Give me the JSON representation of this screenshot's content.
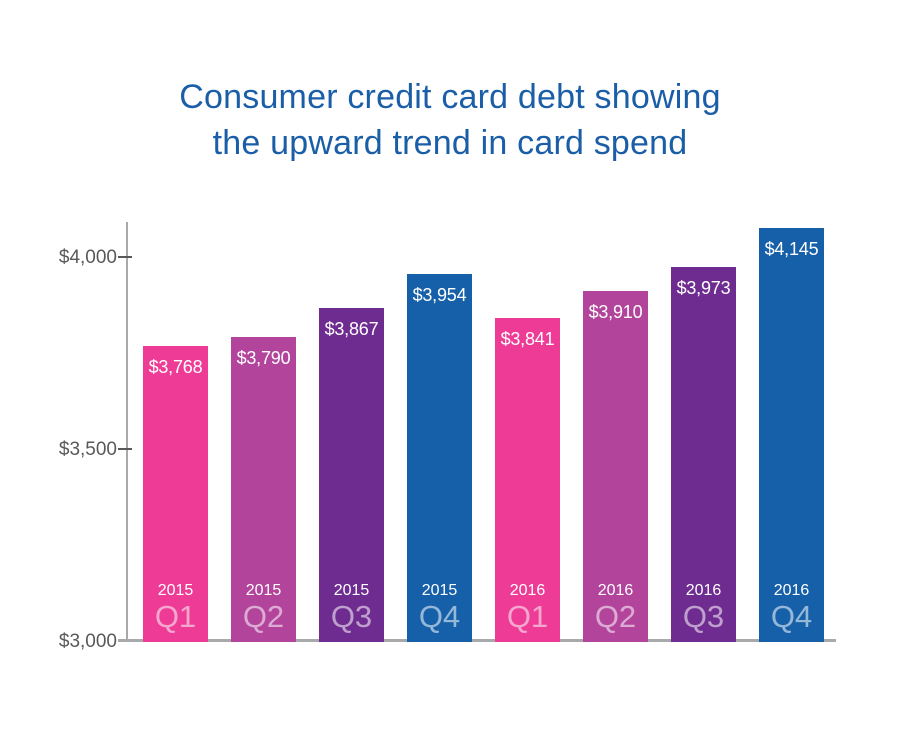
{
  "title": {
    "line1": "Consumer credit card debt showing",
    "line2": "the upward trend in card spend"
  },
  "colors": {
    "background": "#FFFFFF",
    "title_text": "#1B5EA8",
    "axis_line": "#A8A9AB",
    "tick_mark": "#58595B",
    "axis_label_text": "#58595B",
    "bar_value_text": "#FFFFFF",
    "palette_pink": "#EE3C96",
    "palette_magenta": "#B2449B",
    "palette_purple": "#6F2C90",
    "palette_blue": "#1560A8"
  },
  "chart_data": {
    "type": "bar",
    "title": "Consumer credit card debt showing the upward trend in card spend",
    "xlabel": "",
    "ylabel": "",
    "legend": "none",
    "grid": "off",
    "ylim": [
      3000,
      4100
    ],
    "categories": [
      "2015 Q1",
      "2015 Q2",
      "2015 Q3",
      "2015 Q4",
      "2016 Q1",
      "2016 Q2",
      "2016 Q3",
      "2016 Q4"
    ],
    "values": [
      3768,
      3790,
      3867,
      3954,
      3841,
      3910,
      3973,
      4145
    ],
    "y_ticks": [
      {
        "label": "$4,000",
        "value": 4000
      },
      {
        "label": "$3,500",
        "value": 3500
      },
      {
        "label": "$3,000",
        "value": 3000
      }
    ],
    "bars": [
      {
        "year": "2015",
        "quarter": "Q1",
        "value": 3768,
        "value_label": "$3,768",
        "color": "#EE3C96"
      },
      {
        "year": "2015",
        "quarter": "Q2",
        "value": 3790,
        "value_label": "$3,790",
        "color": "#B2449B"
      },
      {
        "year": "2015",
        "quarter": "Q3",
        "value": 3867,
        "value_label": "$3,867",
        "color": "#6F2C90"
      },
      {
        "year": "2015",
        "quarter": "Q4",
        "value": 3954,
        "value_label": "$3,954",
        "color": "#1560A8"
      },
      {
        "year": "2016",
        "quarter": "Q1",
        "value": 3841,
        "value_label": "$3,841",
        "color": "#EE3C96"
      },
      {
        "year": "2016",
        "quarter": "Q2",
        "value": 3910,
        "value_label": "$3,910",
        "color": "#B2449B"
      },
      {
        "year": "2016",
        "quarter": "Q3",
        "value": 3973,
        "value_label": "$3,973",
        "color": "#6F2C90"
      },
      {
        "year": "2016",
        "quarter": "Q4",
        "value": 4145,
        "value_label": "$4,145",
        "color": "#1560A8"
      }
    ]
  }
}
